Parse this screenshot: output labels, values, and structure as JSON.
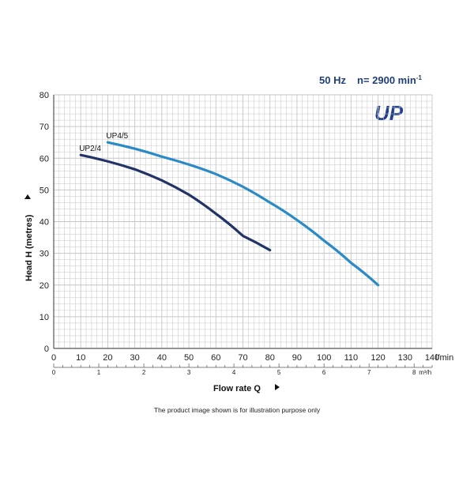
{
  "header": {
    "freq": "50 Hz",
    "speed_prefix": "n= 2900 min",
    "speed_suffix": "-1",
    "logo_text": "UP"
  },
  "footnote": "The product image shown is for illustration purpose only",
  "colors": {
    "title_blue": "#1f3e7a",
    "grid_line": "#c6c6c6",
    "axis": "#555555",
    "logo_blue": "#1f3e8c",
    "up24": "#223366",
    "up45": "#2a8ac6"
  },
  "chart_data": {
    "type": "line",
    "x": {
      "label": "Flow rate Q",
      "unit": "l/min",
      "range": [
        0,
        140
      ],
      "ticks": [
        0,
        10,
        20,
        30,
        40,
        50,
        60,
        70,
        80,
        90,
        100,
        110,
        120,
        130,
        140
      ]
    },
    "x2": {
      "unit": "m³/h",
      "range": [
        0,
        8.4
      ],
      "ticks": [
        0,
        1,
        2,
        3,
        4,
        5,
        6,
        7,
        8
      ]
    },
    "y": {
      "label": "Head H  (metres)",
      "range": [
        0,
        80
      ],
      "ticks": [
        0,
        10,
        20,
        30,
        40,
        50,
        60,
        70,
        80
      ]
    },
    "grid": true,
    "series": [
      {
        "name": "UP2/4",
        "color": "#223366",
        "points": [
          [
            10,
            61
          ],
          [
            20,
            59
          ],
          [
            30,
            56.5
          ],
          [
            40,
            53
          ],
          [
            50,
            48.5
          ],
          [
            60,
            42.5
          ],
          [
            70,
            35.5
          ],
          [
            80,
            31
          ]
        ]
      },
      {
        "name": "UP4/5",
        "color": "#2a8ac6",
        "points": [
          [
            20,
            65
          ],
          [
            30,
            63
          ],
          [
            40,
            60.5
          ],
          [
            50,
            58
          ],
          [
            60,
            55
          ],
          [
            70,
            51
          ],
          [
            80,
            46
          ],
          [
            90,
            40.5
          ],
          [
            100,
            34
          ],
          [
            110,
            27
          ],
          [
            120,
            20
          ]
        ]
      }
    ]
  }
}
